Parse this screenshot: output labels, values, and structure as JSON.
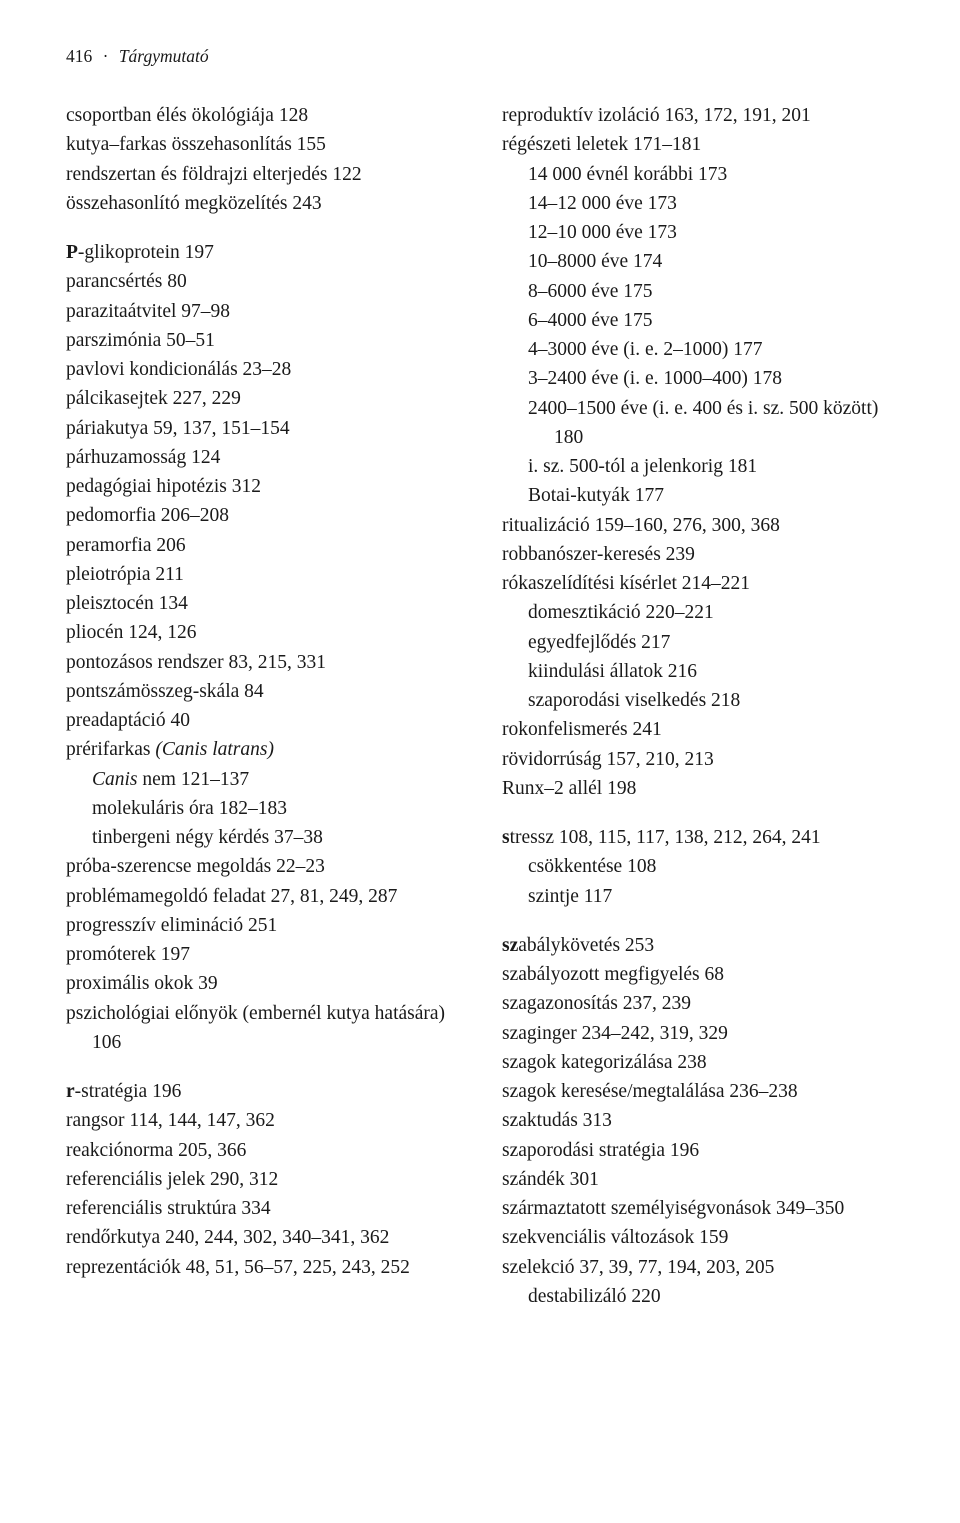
{
  "header": {
    "page_number": "416",
    "separator": "·",
    "title": "Tárgymutató"
  },
  "left": [
    {
      "t": "entry",
      "seg": [
        {
          "txt": "csoportban élés ökológiája  128"
        }
      ]
    },
    {
      "t": "entry",
      "seg": [
        {
          "txt": "kutya–farkas összehasonlítás  155"
        }
      ]
    },
    {
      "t": "entry",
      "seg": [
        {
          "txt": "rendszertan és földrajzi elterjedés  122"
        }
      ]
    },
    {
      "t": "entry",
      "seg": [
        {
          "txt": "összehasonlító megközelítés  243"
        }
      ]
    },
    {
      "t": "gap"
    },
    {
      "t": "entry",
      "seg": [
        {
          "txt": "P",
          "cls": "bold"
        },
        {
          "txt": "-glikoprotein  197"
        }
      ]
    },
    {
      "t": "entry",
      "seg": [
        {
          "txt": "parancsértés  80"
        }
      ]
    },
    {
      "t": "entry",
      "seg": [
        {
          "txt": "parazitaátvitel  97–98"
        }
      ]
    },
    {
      "t": "entry",
      "seg": [
        {
          "txt": "parszimónia  50–51"
        }
      ]
    },
    {
      "t": "entry",
      "seg": [
        {
          "txt": "pavlovi kondicionálás  23–28"
        }
      ]
    },
    {
      "t": "entry",
      "seg": [
        {
          "txt": "pálcikasejtek  227, 229"
        }
      ]
    },
    {
      "t": "entry",
      "seg": [
        {
          "txt": "páriakutya  59, 137, 151–154"
        }
      ]
    },
    {
      "t": "entry",
      "seg": [
        {
          "txt": "párhuzamosság  124"
        }
      ]
    },
    {
      "t": "entry",
      "seg": [
        {
          "txt": "pedagógiai hipotézis  312"
        }
      ]
    },
    {
      "t": "entry",
      "seg": [
        {
          "txt": "pedomorfia  206–208"
        }
      ]
    },
    {
      "t": "entry",
      "seg": [
        {
          "txt": "peramorfia  206"
        }
      ]
    },
    {
      "t": "entry",
      "seg": [
        {
          "txt": "pleiotrópia  211"
        }
      ]
    },
    {
      "t": "entry",
      "seg": [
        {
          "txt": "pleisztocén  134"
        }
      ]
    },
    {
      "t": "entry",
      "seg": [
        {
          "txt": "pliocén  124, 126"
        }
      ]
    },
    {
      "t": "entry",
      "seg": [
        {
          "txt": "pontozásos rendszer  83, 215, 331"
        }
      ]
    },
    {
      "t": "entry",
      "seg": [
        {
          "txt": "pontszámösszeg-skála  84"
        }
      ]
    },
    {
      "t": "entry",
      "seg": [
        {
          "txt": "preadaptáció  40"
        }
      ]
    },
    {
      "t": "entry",
      "seg": [
        {
          "txt": "prérifarkas "
        },
        {
          "txt": "(Canis latrans)",
          "cls": "italic"
        }
      ]
    },
    {
      "t": "sub1",
      "seg": [
        {
          "txt": "Canis",
          "cls": "italic"
        },
        {
          "txt": " nem  121–137"
        }
      ]
    },
    {
      "t": "sub1",
      "seg": [
        {
          "txt": "molekuláris óra  182–183"
        }
      ]
    },
    {
      "t": "sub1",
      "seg": [
        {
          "txt": "tinbergeni négy kérdés  37–38"
        }
      ]
    },
    {
      "t": "entry",
      "seg": [
        {
          "txt": "próba-szerencse megoldás  22–23"
        }
      ]
    },
    {
      "t": "entry",
      "seg": [
        {
          "txt": "problémamegoldó feladat  27, 81, 249, 287"
        }
      ]
    },
    {
      "t": "entry",
      "seg": [
        {
          "txt": "progresszív elimináció  251"
        }
      ]
    },
    {
      "t": "entry",
      "seg": [
        {
          "txt": "promóterek  197"
        }
      ]
    },
    {
      "t": "entry",
      "seg": [
        {
          "txt": "proximális okok  39"
        }
      ]
    },
    {
      "t": "entry",
      "seg": [
        {
          "txt": "pszichológiai előnyök (embernél kutya hatására)  106"
        }
      ]
    },
    {
      "t": "gap"
    },
    {
      "t": "entry",
      "seg": [
        {
          "txt": "r",
          "cls": "bold"
        },
        {
          "txt": "-stratégia  196"
        }
      ]
    },
    {
      "t": "entry",
      "seg": [
        {
          "txt": "rangsor  114, 144, 147, 362"
        }
      ]
    },
    {
      "t": "entry",
      "seg": [
        {
          "txt": "reakciónorma  205, 366"
        }
      ]
    },
    {
      "t": "entry",
      "seg": [
        {
          "txt": "referenciális jelek  290, 312"
        }
      ]
    },
    {
      "t": "entry",
      "seg": [
        {
          "txt": "referenciális struktúra  334"
        }
      ]
    },
    {
      "t": "entry",
      "seg": [
        {
          "txt": "rendőrkutya  240, 244, 302, 340–341, 362"
        }
      ]
    },
    {
      "t": "entry",
      "seg": [
        {
          "txt": "reprezentációk  48, 51, 56–57, 225, 243, 252"
        }
      ]
    }
  ],
  "right": [
    {
      "t": "entry",
      "seg": [
        {
          "txt": "reproduktív izoláció  163, 172, 191, 201"
        }
      ]
    },
    {
      "t": "entry",
      "seg": [
        {
          "txt": "régészeti leletek  171–181"
        }
      ]
    },
    {
      "t": "sub1",
      "seg": [
        {
          "txt": "14 000 évnél korábbi  173"
        }
      ]
    },
    {
      "t": "sub1",
      "seg": [
        {
          "txt": "14–12 000 éve  173"
        }
      ]
    },
    {
      "t": "sub1",
      "seg": [
        {
          "txt": "12–10 000 éve  173"
        }
      ]
    },
    {
      "t": "sub1",
      "seg": [
        {
          "txt": "10–8000 éve  174"
        }
      ]
    },
    {
      "t": "sub1",
      "seg": [
        {
          "txt": "8–6000 éve  175"
        }
      ]
    },
    {
      "t": "sub1",
      "seg": [
        {
          "txt": "6–4000 éve  175"
        }
      ]
    },
    {
      "t": "sub1",
      "seg": [
        {
          "txt": "4–3000 éve (i. e. 2–1000)  177"
        }
      ]
    },
    {
      "t": "sub1",
      "seg": [
        {
          "txt": "3–2400 éve (i. e. 1000–400)  178"
        }
      ]
    },
    {
      "t": "sub1",
      "seg": [
        {
          "txt": "2400–1500 éve (i. e. 400 és i. sz. 500 között)  180"
        }
      ]
    },
    {
      "t": "sub1",
      "seg": [
        {
          "txt": "i. sz. 500-tól a jelenkorig  181"
        }
      ]
    },
    {
      "t": "sub1",
      "seg": [
        {
          "txt": "Botai-kutyák  177"
        }
      ]
    },
    {
      "t": "entry",
      "seg": [
        {
          "txt": "ritualizáció  159–160, 276, 300, 368"
        }
      ]
    },
    {
      "t": "entry",
      "seg": [
        {
          "txt": "robbanószer-keresés  239"
        }
      ]
    },
    {
      "t": "entry",
      "seg": [
        {
          "txt": "rókaszelídítési kísérlet  214–221"
        }
      ]
    },
    {
      "t": "sub1",
      "seg": [
        {
          "txt": "domesztikáció  220–221"
        }
      ]
    },
    {
      "t": "sub1",
      "seg": [
        {
          "txt": "egyedfejlődés  217"
        }
      ]
    },
    {
      "t": "sub1",
      "seg": [
        {
          "txt": "kiindulási állatok  216"
        }
      ]
    },
    {
      "t": "sub1",
      "seg": [
        {
          "txt": "szaporodási viselkedés  218"
        }
      ]
    },
    {
      "t": "entry",
      "seg": [
        {
          "txt": "rokonfelismerés  241"
        }
      ]
    },
    {
      "t": "entry",
      "seg": [
        {
          "txt": "rövidorrúság  157, 210, 213"
        }
      ]
    },
    {
      "t": "entry",
      "seg": [
        {
          "txt": "Runx–2 allél  198"
        }
      ]
    },
    {
      "t": "gap"
    },
    {
      "t": "entry",
      "seg": [
        {
          "txt": "s",
          "cls": "bold"
        },
        {
          "txt": "tressz  108, 115, 117, 138, 212, 264, 241"
        }
      ]
    },
    {
      "t": "sub1",
      "seg": [
        {
          "txt": "csökkentése  108"
        }
      ]
    },
    {
      "t": "sub1",
      "seg": [
        {
          "txt": "szintje  117"
        }
      ]
    },
    {
      "t": "gap"
    },
    {
      "t": "entry",
      "seg": [
        {
          "txt": "sz",
          "cls": "bold"
        },
        {
          "txt": "abálykövetés  253"
        }
      ]
    },
    {
      "t": "entry",
      "seg": [
        {
          "txt": "szabályozott megfigyelés  68"
        }
      ]
    },
    {
      "t": "entry",
      "seg": [
        {
          "txt": "szagazonosítás  237, 239"
        }
      ]
    },
    {
      "t": "entry",
      "seg": [
        {
          "txt": "szaginger  234–242, 319, 329"
        }
      ]
    },
    {
      "t": "entry",
      "seg": [
        {
          "txt": "szagok kategorizálása  238"
        }
      ]
    },
    {
      "t": "entry",
      "seg": [
        {
          "txt": "szagok keresése/megtalálása  236–238"
        }
      ]
    },
    {
      "t": "entry",
      "seg": [
        {
          "txt": "szaktudás  313"
        }
      ]
    },
    {
      "t": "entry",
      "seg": [
        {
          "txt": "szaporodási stratégia  196"
        }
      ]
    },
    {
      "t": "entry",
      "seg": [
        {
          "txt": "szándék  301"
        }
      ]
    },
    {
      "t": "entry",
      "seg": [
        {
          "txt": "származtatott személyiségvonások  349–350"
        }
      ]
    },
    {
      "t": "entry",
      "seg": [
        {
          "txt": "szekvenciális változások  159"
        }
      ]
    },
    {
      "t": "entry",
      "seg": [
        {
          "txt": "szelekció  37, 39, 77, 194, 203, 205"
        }
      ]
    },
    {
      "t": "sub1",
      "seg": [
        {
          "txt": "destabilizáló  220"
        }
      ]
    }
  ]
}
